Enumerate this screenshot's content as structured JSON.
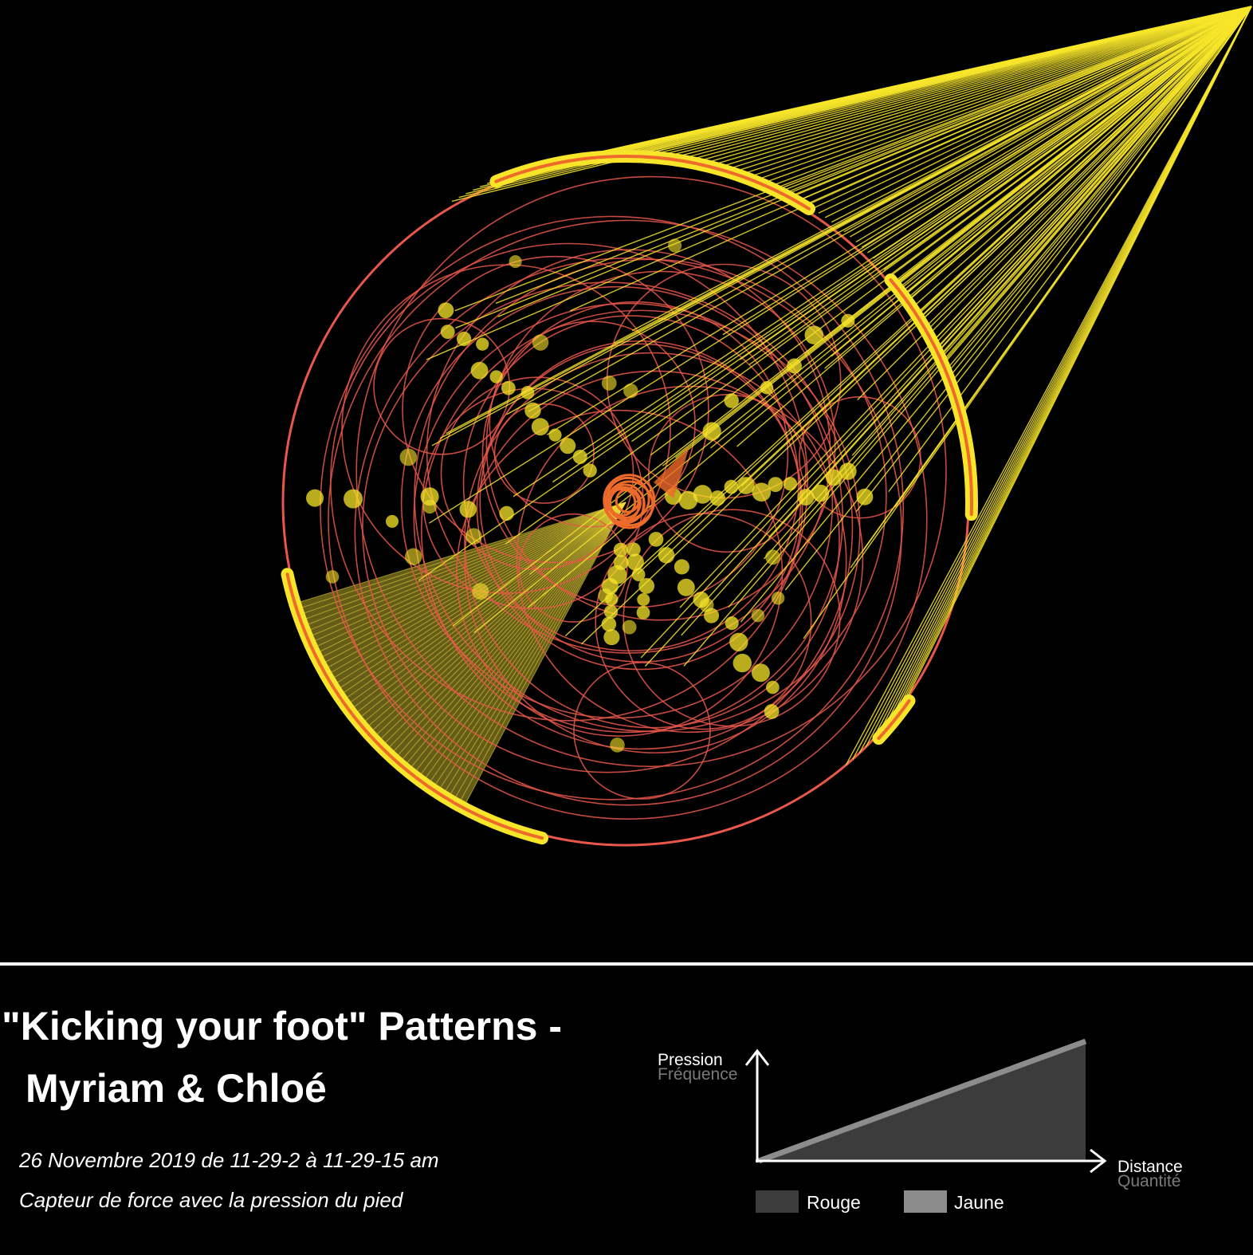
{
  "colors": {
    "background": "#000000",
    "yellow_rays": "#f7e52a",
    "yellow_fill": "#f0dc3a",
    "red_circles": "#e8574a",
    "orange_core": "#ee6a2a",
    "legend_rouge": "#3c3c3c",
    "legend_jaune": "#8c8c8c",
    "legend_secondary_text": "#7a7a7a"
  },
  "header": {
    "title_line1": "\"Kicking your foot\" Patterns -",
    "title_line2": "Myriam & Chloé",
    "date_text": "26 Novembre 2019 de 11-29-2 à 11-29-15 am",
    "sensor_text": "Capteur de force avec la pression du pied"
  },
  "legend": {
    "y_label_primary": "Pression",
    "y_label_secondary": "Fréquence",
    "x_label_primary": "Distance",
    "x_label_secondary": "Quantité",
    "items": [
      {
        "label": "Rouge",
        "color": "#3c3c3c"
      },
      {
        "label": "Jaune",
        "color": "#8c8c8c"
      }
    ]
  },
  "chart_data": {
    "type": "radial-pattern",
    "series": [
      {
        "name": "Rouge",
        "marks": "circles"
      },
      {
        "name": "Jaune",
        "marks": "rays-and-dots"
      }
    ]
  }
}
